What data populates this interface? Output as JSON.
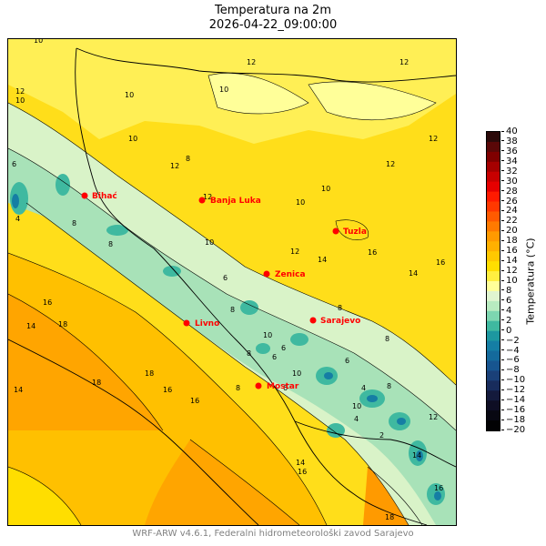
{
  "title": {
    "line1": "Temperatura na 2m",
    "line2": "2026-04-22_09:00:00"
  },
  "colorbar": {
    "label": "Temperatura (°C)",
    "ticks": [
      "40",
      "38",
      "36",
      "34",
      "32",
      "30",
      "28",
      "26",
      "24",
      "22",
      "20",
      "18",
      "16",
      "14",
      "12",
      "10",
      "8",
      "6",
      "4",
      "2",
      "0",
      "−2",
      "−4",
      "−6",
      "−8",
      "−10",
      "−12",
      "−14",
      "−16",
      "−18",
      "−20"
    ],
    "colors": [
      "#2b0a0a",
      "#5a0808",
      "#7f0000",
      "#a50000",
      "#c80000",
      "#e60000",
      "#ff1a00",
      "#ff3800",
      "#ff5a00",
      "#ff7a00",
      "#ff9a00",
      "#ffb000",
      "#ffc800",
      "#ffde00",
      "#ffef40",
      "#ffff99",
      "#e0f5d0",
      "#b8ebc0",
      "#7dd6b0",
      "#3fb9a0",
      "#1d97a0",
      "#157ea4",
      "#146a9c",
      "#175590",
      "#1a4078",
      "#182c5c",
      "#141a3c",
      "#0e0e24",
      "#080812",
      "#020204"
    ]
  },
  "cities": [
    {
      "name": "Bihać"
    },
    {
      "name": "Banja Luka"
    },
    {
      "name": "Tuzla"
    },
    {
      "name": "Zenica"
    },
    {
      "name": "Sarajevo"
    },
    {
      "name": "Livno"
    },
    {
      "name": "Mostar"
    }
  ],
  "contour_labels": [
    "10",
    "12",
    "10",
    "10",
    "12",
    "12",
    "10",
    "14",
    "14",
    "12",
    "16",
    "16",
    "16",
    "14",
    "18",
    "14",
    "18",
    "16",
    "16",
    "18",
    "16",
    "14",
    "12",
    "10",
    "8",
    "6",
    "4",
    "8",
    "10",
    "12",
    "8",
    "6",
    "6",
    "8",
    "10",
    "6",
    "8",
    "4",
    "2",
    "6",
    "8",
    "10",
    "8",
    "10",
    "12",
    "10",
    "8",
    "6",
    "4",
    "8",
    "10",
    "12",
    "14",
    "16",
    "18",
    "12"
  ],
  "footer": "WRF-ARW v4.6.1, Federalni hidrometeorološki zavod Sarajevo"
}
